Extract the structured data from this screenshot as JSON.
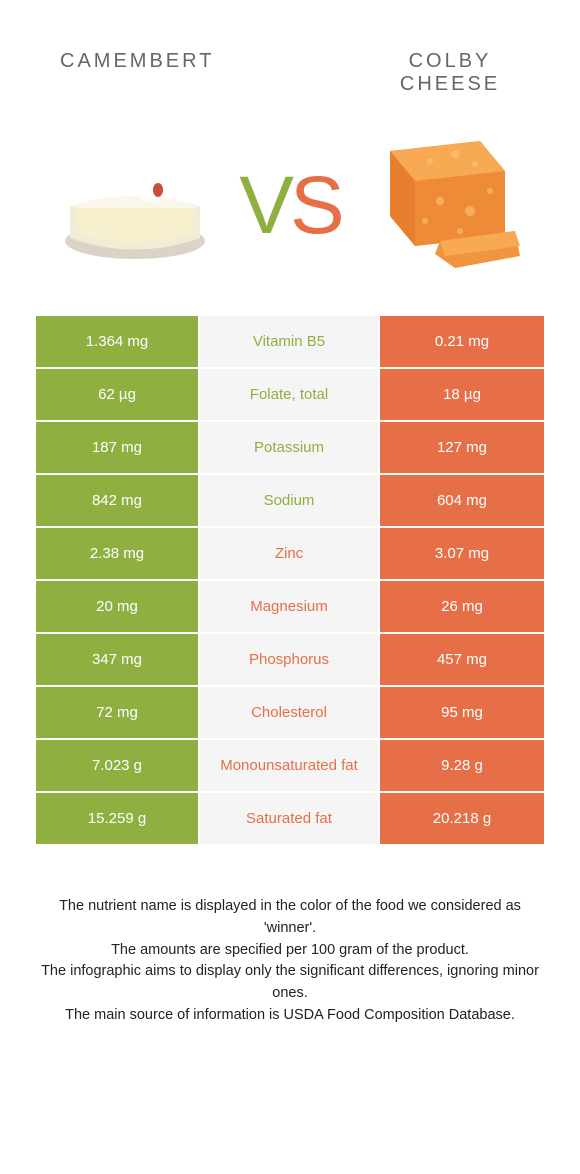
{
  "colors": {
    "green": "#8fb041",
    "orange": "#e76f48",
    "mid_bg": "#f5f5f5",
    "text": "#222222",
    "title": "#666666"
  },
  "header": {
    "left": "CAMEMBERT",
    "right": "COLBY CHEESE",
    "vs_v": "V",
    "vs_s": "S"
  },
  "rows": [
    {
      "left": "1.364 mg",
      "mid": "Vitamin B5",
      "right": "0.21 mg",
      "winner": "left"
    },
    {
      "left": "62 µg",
      "mid": "Folate, total",
      "right": "18 µg",
      "winner": "left"
    },
    {
      "left": "187 mg",
      "mid": "Potassium",
      "right": "127 mg",
      "winner": "left"
    },
    {
      "left": "842 mg",
      "mid": "Sodium",
      "right": "604 mg",
      "winner": "left"
    },
    {
      "left": "2.38 mg",
      "mid": "Zinc",
      "right": "3.07 mg",
      "winner": "right"
    },
    {
      "left": "20 mg",
      "mid": "Magnesium",
      "right": "26 mg",
      "winner": "right"
    },
    {
      "left": "347 mg",
      "mid": "Phosphorus",
      "right": "457 mg",
      "winner": "right"
    },
    {
      "left": "72 mg",
      "mid": "Cholesterol",
      "right": "95 mg",
      "winner": "right"
    },
    {
      "left": "7.023 g",
      "mid": "Monounsaturated fat",
      "right": "9.28 g",
      "winner": "right"
    },
    {
      "left": "15.259 g",
      "mid": "Saturated fat",
      "right": "20.218 g",
      "winner": "right"
    }
  ],
  "footer": {
    "l1": "The nutrient name is displayed in the color of the food we considered as 'winner'.",
    "l2": "The amounts are specified per 100 gram of the product.",
    "l3": "The infographic aims to display only the significant differences, ignoring minor ones.",
    "l4": "The main source of information is USDA Food Composition Database."
  }
}
